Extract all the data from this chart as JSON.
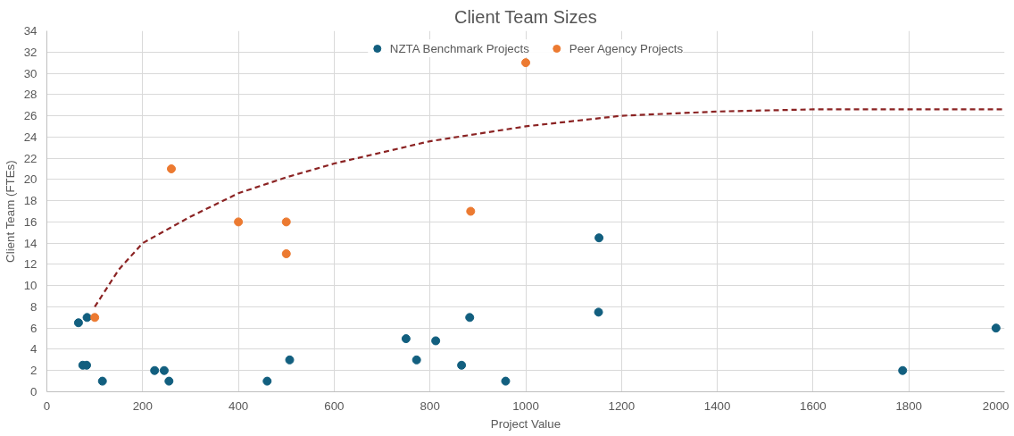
{
  "chart_data": {
    "type": "scatter",
    "title": "Client Team Sizes",
    "xlabel": "Project Value",
    "ylabel": "Client Team (FTEs)",
    "xlim": [
      0,
      2000
    ],
    "xticks": [
      0,
      200,
      400,
      600,
      800,
      1000,
      1200,
      1400,
      1600,
      1800,
      2000
    ],
    "ylim": [
      0,
      34
    ],
    "yticks": [
      0,
      2,
      4,
      6,
      8,
      10,
      12,
      14,
      16,
      18,
      20,
      22,
      24,
      26,
      28,
      30,
      32,
      34
    ],
    "grid": true,
    "legend": "top",
    "marker": "circle",
    "series": [
      {
        "name": "NZTA Benchmark Projects",
        "color": "#125f7f",
        "x": [
          66,
          75,
          83,
          84,
          116,
          225,
          245,
          255,
          460,
          507,
          750,
          772,
          812,
          866,
          883,
          958,
          1153,
          1152,
          1787,
          1982
        ],
        "values": [
          6.5,
          2.5,
          2.5,
          7,
          1,
          2,
          2,
          1,
          1,
          3,
          5,
          3,
          4.8,
          2.5,
          7,
          1,
          14.5,
          7.5,
          2,
          6
        ]
      },
      {
        "name": "Peer Agency Projects",
        "color": "#ec7a31",
        "x": [
          100,
          260,
          400,
          500,
          500,
          885,
          1000
        ],
        "values": [
          7,
          21,
          16,
          16,
          13,
          17,
          31
        ]
      },
      {
        "type": "line",
        "color": "#8b2323",
        "line_style": "dashed",
        "marker": "none",
        "x": [
          100,
          150,
          200,
          300,
          400,
          500,
          600,
          800,
          1000,
          1200,
          1400,
          1600,
          2000
        ],
        "values": [
          8,
          11.5,
          14,
          16.5,
          18.7,
          20.2,
          21.5,
          23.6,
          25,
          26,
          26.4,
          26.6,
          26.6
        ]
      }
    ]
  }
}
